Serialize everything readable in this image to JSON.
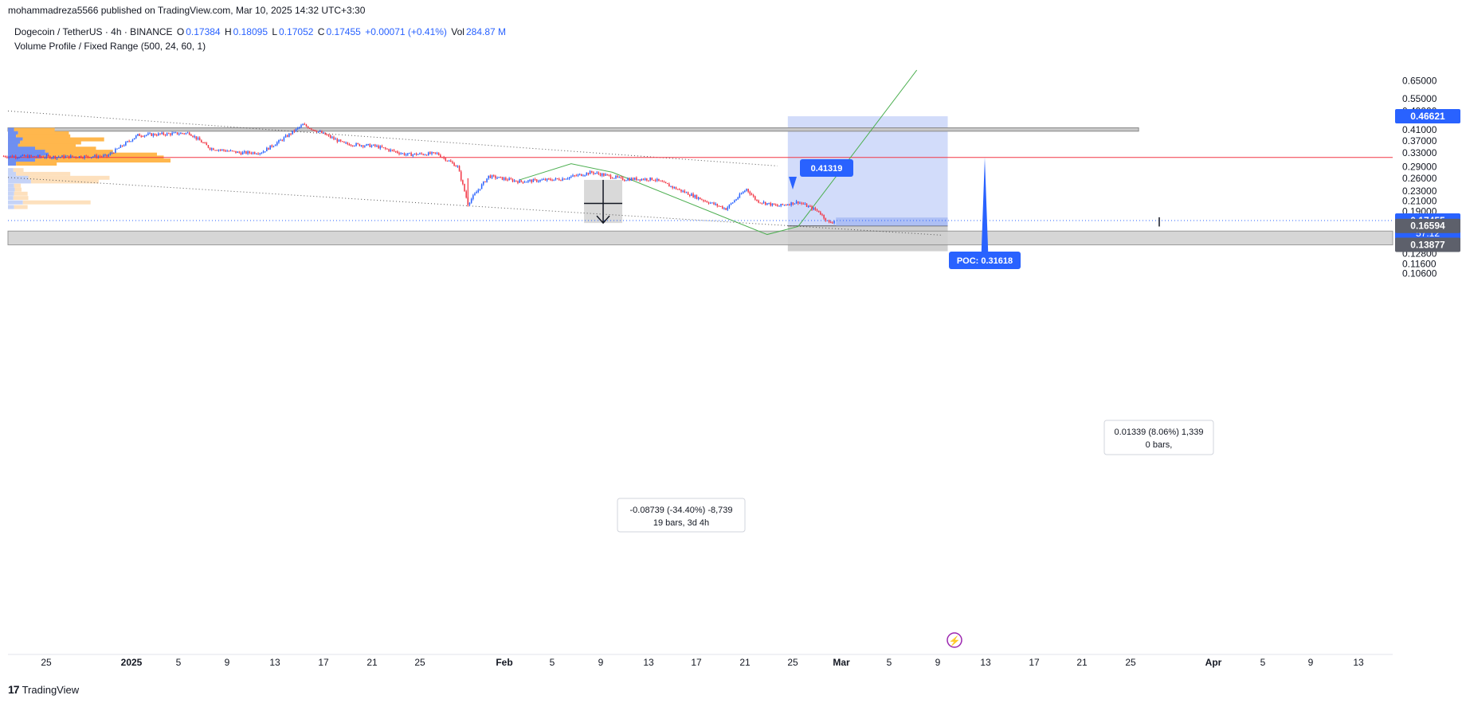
{
  "header": {
    "published": "mohammadreza5566 published on TradingView.com, Mar 10, 2025 14:32 UTC+3:30"
  },
  "legend": {
    "symbol": "Dogecoin / TetherUS · 4h · BINANCE",
    "o_label": "O",
    "o": "0.17384",
    "h_label": "H",
    "h": "0.18095",
    "l_label": "L",
    "l": "0.17052",
    "c_label": "C",
    "c": "0.17455",
    "change": "+0.00071 (+0.41%)",
    "vol_label": "Vol",
    "vol": "284.87 M",
    "indicator": "Volume Profile / Fixed Range (500, 24, 60, 1)"
  },
  "chart_data": {
    "type": "candlestick",
    "symbol": "DOGEUSDT",
    "interval": "4h",
    "y_scale": "log",
    "ylim": [
      0.1,
      0.7
    ],
    "y_ticks": [
      "0.65000",
      "0.55000",
      "0.49000",
      "0.45000",
      "0.41000",
      "0.37000",
      "0.33000",
      "0.29000",
      "0.26000",
      "0.23000",
      "0.21000",
      "0.19000",
      "0.15500",
      "0.12800",
      "0.11600",
      "0.10600"
    ],
    "x_ticks": [
      "25",
      "2025",
      "5",
      "9",
      "13",
      "17",
      "21",
      "25",
      "Feb",
      "5",
      "9",
      "13",
      "17",
      "21",
      "25",
      "Mar",
      "5",
      "9",
      "13",
      "17",
      "21",
      "25",
      "Apr",
      "5",
      "9",
      "13"
    ],
    "price_path": [
      [
        "2024-12-20",
        0.32
      ],
      [
        "2024-12-25",
        0.318
      ],
      [
        "2024-12-30",
        0.32
      ],
      [
        "2025-01-02",
        0.39
      ],
      [
        "2025-01-05",
        0.395
      ],
      [
        "2025-01-07",
        0.398
      ],
      [
        "2025-01-09",
        0.345
      ],
      [
        "2025-01-12",
        0.33
      ],
      [
        "2025-01-14",
        0.332
      ],
      [
        "2025-01-16",
        0.375
      ],
      [
        "2025-01-18",
        0.43
      ],
      [
        "2025-01-20",
        0.395
      ],
      [
        "2025-01-22",
        0.36
      ],
      [
        "2025-01-25",
        0.352
      ],
      [
        "2025-01-28",
        0.325
      ],
      [
        "2025-01-31",
        0.328
      ],
      [
        "2025-02-02",
        0.29
      ],
      [
        "2025-02-03",
        0.205
      ],
      [
        "2025-02-05",
        0.265
      ],
      [
        "2025-02-08",
        0.252
      ],
      [
        "2025-02-12",
        0.258
      ],
      [
        "2025-02-15",
        0.275
      ],
      [
        "2025-02-18",
        0.258
      ],
      [
        "2025-02-21",
        0.258
      ],
      [
        "2025-02-24",
        0.228
      ],
      [
        "2025-02-26",
        0.21
      ],
      [
        "2025-02-28",
        0.195
      ],
      [
        "2025-03-02",
        0.235
      ],
      [
        "2025-03-03",
        0.21
      ],
      [
        "2025-03-05",
        0.2
      ],
      [
        "2025-03-07",
        0.208
      ],
      [
        "2025-03-09",
        0.19
      ],
      [
        "2025-03-10",
        0.1705
      ],
      [
        "2025-03-10 14:00",
        0.17455
      ]
    ],
    "horizontal_lines": {
      "poc": 0.31618,
      "current": 0.17455
    },
    "zones": [
      {
        "name": "resistance",
        "from": 0.405,
        "to": 0.418
      },
      {
        "name": "support",
        "from": 0.13877,
        "to": 0.158
      }
    ],
    "long_position": {
      "target": 0.46621,
      "entry": 0.16594,
      "stop": 0.13877
    },
    "measure_1": {
      "text": "-0.08739 (-34.40%) -8,739",
      "bars": "19 bars, 3d 4h"
    },
    "measure_2": {
      "text": "0.01339 (8.06%) 1,339",
      "bars": "0 bars,"
    },
    "callouts": {
      "high": "0.41319",
      "poc": "POC: 0.31618"
    },
    "price_labels": {
      "target": "0.46621",
      "current": "0.17455",
      "countdown": "57:12",
      "entry": "0.16594",
      "stop": "0.13877"
    }
  },
  "colors": {
    "up": "#2962ff",
    "down": "#f23645",
    "poc_line": "#f23645",
    "position_fill": "#c7d3f9",
    "zone_fill": "#c8c8c8",
    "volume_up": "#6f8ff0",
    "volume_down": "#ffb74d",
    "trend": "#4caf50"
  },
  "footer": {
    "brand": "TradingView"
  }
}
